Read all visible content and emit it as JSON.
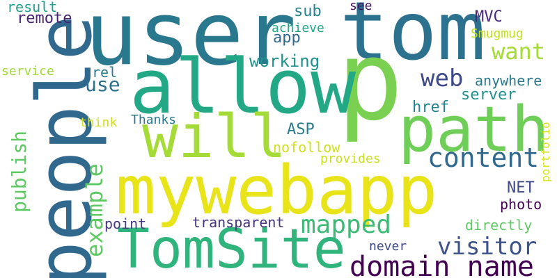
{
  "words": {
    "user": {
      "text": "user",
      "color": "#2a788e"
    },
    "tom": {
      "text": "tom",
      "color": "#2c728e"
    },
    "p": {
      "text": "p",
      "color": "#7ad151"
    },
    "allow": {
      "text": "allow",
      "color": "#22a884"
    },
    "people": {
      "text": "people",
      "color": "#31688e"
    },
    "will": {
      "text": "will",
      "color": "#a5db36"
    },
    "path": {
      "text": "path",
      "color": "#6ece58"
    },
    "mywebapp": {
      "text": "mywebapp",
      "color": "#e8e419"
    },
    "tomsite": {
      "text": "TomSite",
      "color": "#2fb47c"
    },
    "domain_name": {
      "text": "domain name",
      "color": "#440154"
    },
    "visitor": {
      "text": "visitor",
      "color": "#3b528b"
    },
    "content": {
      "text": "content",
      "color": "#31688e"
    },
    "mapped": {
      "text": "mapped",
      "color": "#3bbb75"
    },
    "example": {
      "text": "example",
      "color": "#5ec962"
    },
    "publish": {
      "text": "publish",
      "color": "#5ec962"
    },
    "want": {
      "text": "want",
      "color": "#a5db36"
    },
    "web": {
      "text": "web",
      "color": "#3e4989"
    },
    "use": {
      "text": "use",
      "color": "#2d708e"
    },
    "working": {
      "text": "working",
      "color": "#21918c"
    },
    "app": {
      "text": "app",
      "color": "#31688e"
    },
    "server": {
      "text": "server",
      "color": "#21918c"
    },
    "anywhere": {
      "text": "anywhere",
      "color": "#2a788e"
    },
    "href": {
      "text": "href",
      "color": "#25838e"
    },
    "mvc": {
      "text": "MVC",
      "color": "#482878"
    },
    "smugmug": {
      "text": "Smugmug",
      "color": "#c2df23"
    },
    "see": {
      "text": "see",
      "color": "#471365"
    },
    "sub": {
      "text": "sub",
      "color": "#25838e"
    },
    "achieve": {
      "text": "achieve",
      "color": "#22a884"
    },
    "remote": {
      "text": "remote",
      "color": "#482475"
    },
    "result": {
      "text": "result",
      "color": "#1f9e89"
    },
    "service": {
      "text": "service",
      "color": "#a0da39"
    },
    "rel": {
      "text": "rel",
      "color": "#2a788e"
    },
    "thanks": {
      "text": "Thanks",
      "color": "#2a788e"
    },
    "think": {
      "text": "think",
      "color": "#d0e11c"
    },
    "asp": {
      "text": "ASP",
      "color": "#287c8e"
    },
    "nofollow": {
      "text": "nofollow",
      "color": "#d0e11c"
    },
    "provides": {
      "text": "provides",
      "color": "#c8e020"
    },
    "portfolio": {
      "text": "portfolio",
      "color": "#d8e219"
    },
    "net": {
      "text": "NET",
      "color": "#3e4989"
    },
    "photo": {
      "text": "photo",
      "color": "#440154"
    },
    "point": {
      "text": "point",
      "color": "#443b84"
    },
    "transparent": {
      "text": "transparent",
      "color": "#46327e"
    },
    "directly": {
      "text": "directly",
      "color": "#5ec962"
    },
    "never": {
      "text": "never",
      "color": "#3e4989"
    }
  }
}
